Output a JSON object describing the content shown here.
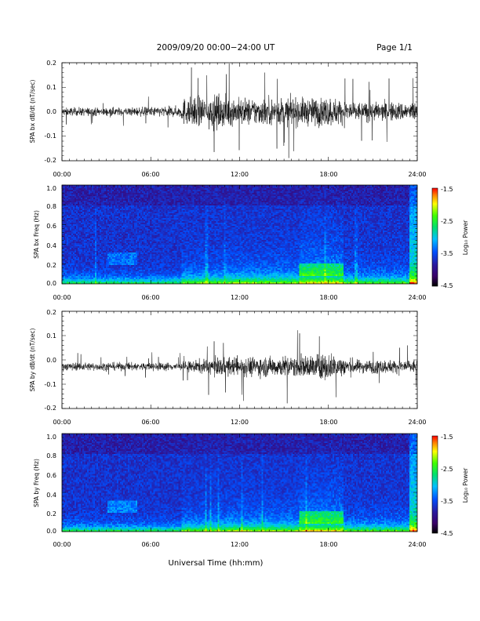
{
  "header": {
    "title": "2009/09/20   00:00−24:00 UT",
    "page": "Page 1/1"
  },
  "xaxis": {
    "label": "Universal Time (hh:mm)",
    "ticks": [
      "00:00",
      "06:00",
      "12:00",
      "18:00",
      "24:00"
    ]
  },
  "chart_data": [
    {
      "type": "line",
      "ylabel": "SPA bx dB/dt (nT/sec)",
      "xlim": [
        0,
        24
      ],
      "ylim": [
        -0.22,
        0.22
      ],
      "yticks": [
        "0.2",
        "0.1",
        "0.0",
        "-0.1",
        "-0.2"
      ],
      "series": [
        {
          "values_desc": ""
        }
      ],
      "baseline": 0.0,
      "envelope": [
        {
          "x": 0,
          "amp": 0.03
        },
        {
          "x": 4,
          "amp": 0.03
        },
        {
          "x": 8,
          "amp": 0.04
        },
        {
          "x": 8.2,
          "amp": 0.1
        },
        {
          "x": 10,
          "amp": 0.12
        },
        {
          "x": 12,
          "amp": 0.1
        },
        {
          "x": 16,
          "amp": 0.1
        },
        {
          "x": 18,
          "amp": 0.11
        },
        {
          "x": 20,
          "amp": 0.07
        },
        {
          "x": 24,
          "amp": 0.07
        }
      ],
      "color": "#000000"
    },
    {
      "type": "heatmap",
      "ylabel": "SPA bx Freq (Hz)",
      "xlim": [
        0,
        24
      ],
      "ylim": [
        0,
        1.0
      ],
      "yticks": [
        "1.0",
        "0.8",
        "0.6",
        "0.4",
        "0.2",
        "0.0"
      ],
      "colorbar": {
        "label": "Log₁₀ Power",
        "ticks": [
          "-1.5",
          "-2.5",
          "-3.5",
          "-4.5"
        ],
        "range": [
          -4.5,
          -1.5
        ]
      }
    },
    {
      "type": "line",
      "ylabel": "SPA by dB/dt (nT/sec)",
      "xlim": [
        0,
        24
      ],
      "ylim": [
        -0.22,
        0.22
      ],
      "yticks": [
        "0.2",
        "0.1",
        "0.0",
        "-0.1",
        "-0.2"
      ],
      "baseline": -0.03,
      "envelope": [
        {
          "x": 0,
          "amp": 0.03
        },
        {
          "x": 8,
          "amp": 0.03
        },
        {
          "x": 10,
          "amp": 0.06
        },
        {
          "x": 12,
          "amp": 0.07
        },
        {
          "x": 16,
          "amp": 0.08
        },
        {
          "x": 18,
          "amp": 0.1
        },
        {
          "x": 20,
          "amp": 0.05
        },
        {
          "x": 24,
          "amp": 0.05
        }
      ],
      "color": "#000000"
    },
    {
      "type": "heatmap",
      "ylabel": "SPA by Freq (Hz)",
      "xlim": [
        0,
        24
      ],
      "ylim": [
        0,
        1.0
      ],
      "yticks": [
        "1.0",
        "0.8",
        "0.6",
        "0.4",
        "0.2",
        "0.0"
      ],
      "colorbar": {
        "label": "Log₁₀ Power",
        "ticks": [
          "-1.5",
          "-2.5",
          "-3.5",
          "-4.5"
        ],
        "range": [
          -4.5,
          -1.5
        ]
      }
    }
  ]
}
